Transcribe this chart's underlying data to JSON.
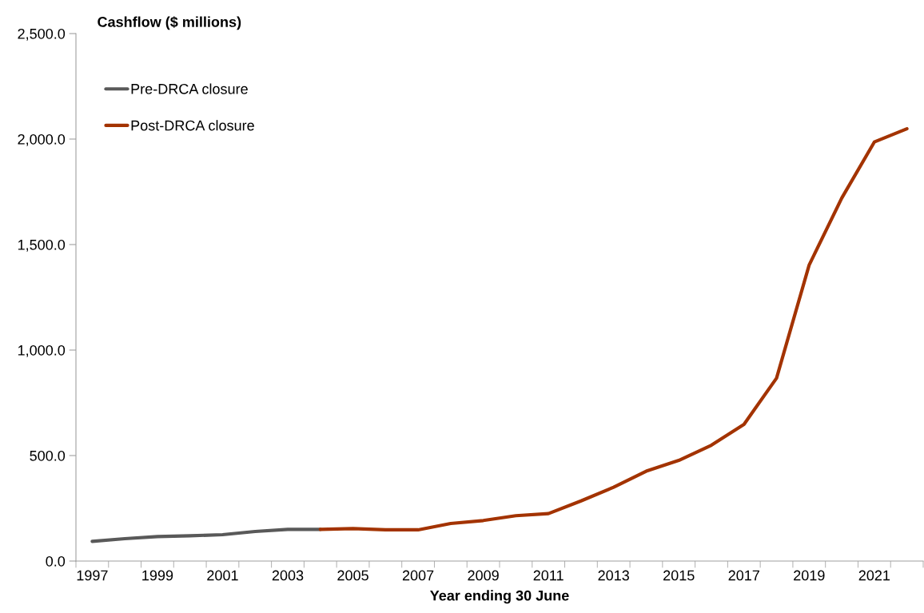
{
  "chart_data": {
    "type": "line",
    "ylabel": "Cashflow ($ millions)",
    "xlabel": "Year ending 30 June",
    "categories": [
      "1997",
      null,
      "1999",
      null,
      "2001",
      null,
      "2003",
      null,
      "2005",
      null,
      "2007",
      null,
      "2009",
      null,
      "2011",
      null,
      "2013",
      null,
      "2015",
      null,
      "2017",
      null,
      "2019",
      null,
      "2021",
      null
    ],
    "series": [
      {
        "name": "Pre-DRCA closure",
        "color": "#595959",
        "values": [
          93,
          106,
          116,
          120,
          125,
          140,
          150,
          150,
          null,
          null,
          null,
          null,
          null,
          null,
          null,
          null,
          null,
          null,
          null,
          null,
          null,
          null,
          null,
          null,
          null,
          null
        ]
      },
      {
        "name": "Post-DRCA closure",
        "color": "#a33300",
        "values": [
          null,
          null,
          null,
          null,
          null,
          null,
          null,
          150,
          154,
          148,
          148,
          178,
          192,
          215,
          225,
          285,
          350,
          426,
          477,
          549,
          648,
          867,
          1403,
          1720,
          1986,
          2049
        ]
      }
    ],
    "ylim": [
      0,
      2500
    ],
    "yticks": [
      {
        "value": 0,
        "label": "0.0"
      },
      {
        "value": 500,
        "label": "500.0"
      },
      {
        "value": 1000,
        "label": "1,000.0"
      },
      {
        "value": 1500,
        "label": "1,500.0"
      },
      {
        "value": 2000,
        "label": "2,000.0"
      },
      {
        "value": 2500,
        "label": "2,500.0"
      }
    ],
    "grid": false,
    "legend": "top left",
    "marker": "none",
    "line_style": "solid"
  }
}
